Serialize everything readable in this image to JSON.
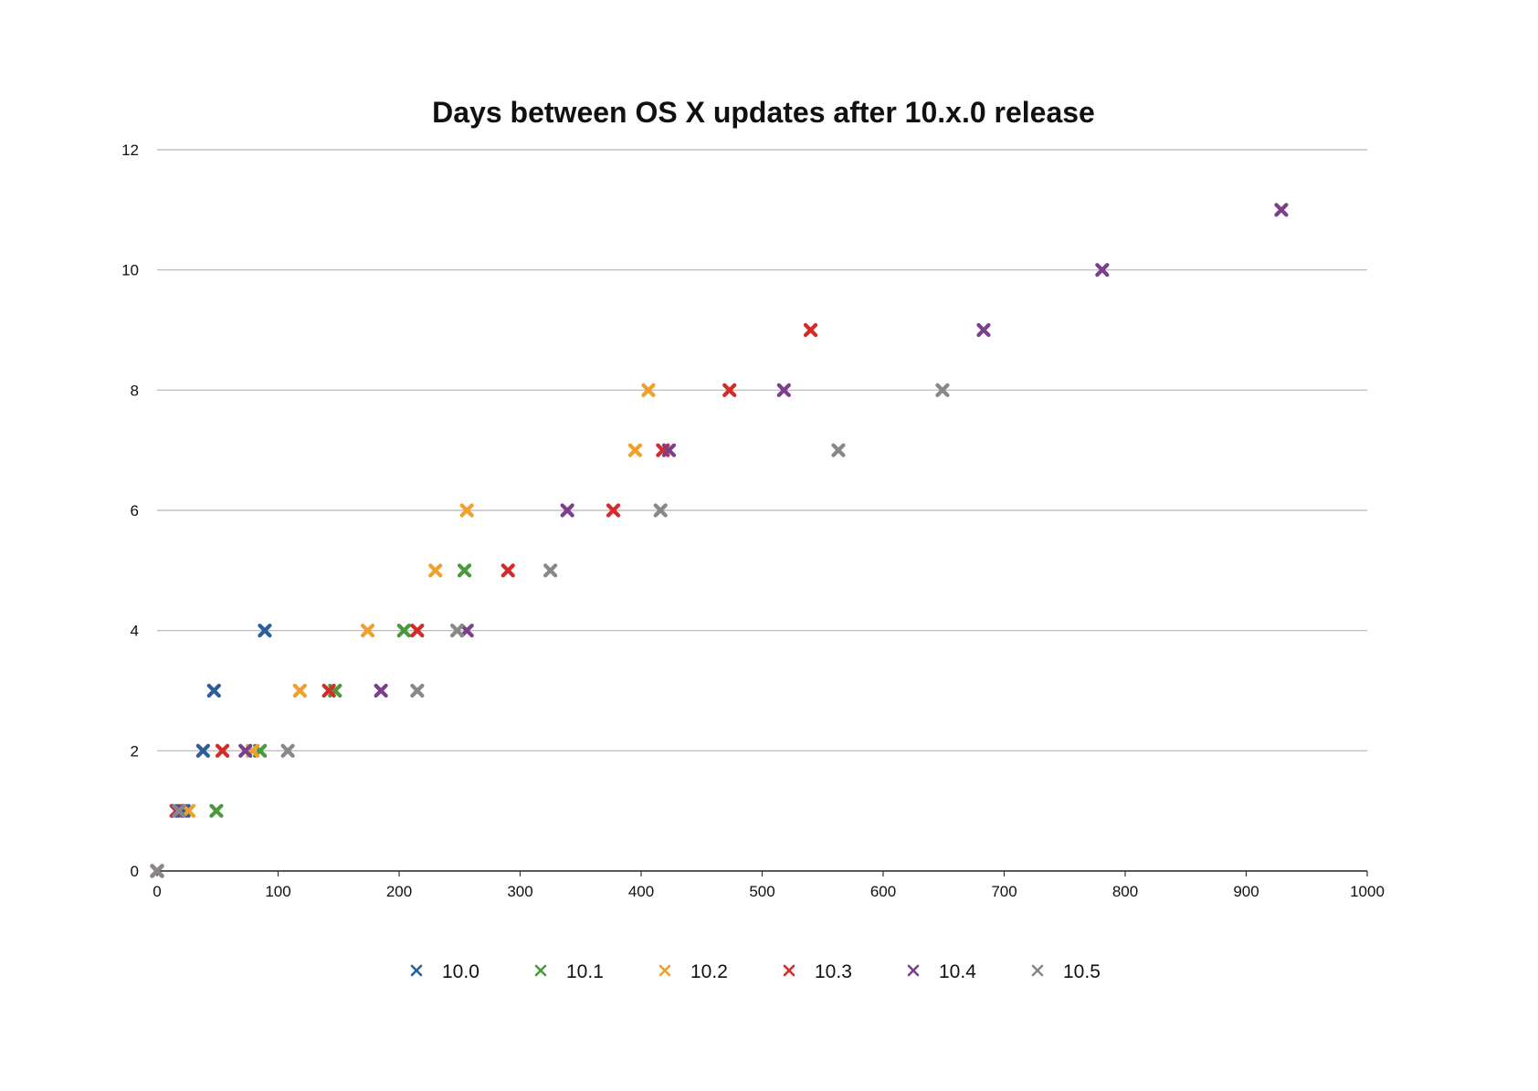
{
  "chart_data": {
    "type": "scatter",
    "title": "Days between OS X updates after 10.x.0 release",
    "xlabel": "",
    "ylabel": "",
    "xlim": [
      0,
      1000
    ],
    "ylim": [
      0,
      12
    ],
    "x_ticks": [
      0,
      100,
      200,
      300,
      400,
      500,
      600,
      700,
      800,
      900,
      1000
    ],
    "y_ticks": [
      0,
      2,
      4,
      6,
      8,
      10,
      12
    ],
    "grid": "horizontal",
    "legend_position": "bottom",
    "marker": "x",
    "series": [
      {
        "name": "10.0",
        "color": "#2b5e9a",
        "points": [
          [
            0,
            0
          ],
          [
            20,
            1
          ],
          [
            22,
            1
          ],
          [
            38,
            2
          ],
          [
            47,
            3
          ],
          [
            89,
            4
          ]
        ]
      },
      {
        "name": "10.1",
        "color": "#4a9a3c",
        "points": [
          [
            0,
            0
          ],
          [
            49,
            1
          ],
          [
            85,
            2
          ],
          [
            147,
            3
          ],
          [
            204,
            4
          ],
          [
            254,
            5
          ]
        ]
      },
      {
        "name": "10.2",
        "color": "#f0a02c",
        "points": [
          [
            0,
            0
          ],
          [
            26,
            1
          ],
          [
            79,
            2
          ],
          [
            118,
            3
          ],
          [
            174,
            4
          ],
          [
            230,
            5
          ],
          [
            256,
            6
          ],
          [
            395,
            7
          ],
          [
            406,
            8
          ]
        ]
      },
      {
        "name": "10.3",
        "color": "#d42b2b",
        "points": [
          [
            0,
            0
          ],
          [
            16,
            1
          ],
          [
            54,
            2
          ],
          [
            142,
            3
          ],
          [
            215,
            4
          ],
          [
            290,
            5
          ],
          [
            377,
            6
          ],
          [
            418,
            7
          ],
          [
            473,
            8
          ],
          [
            540,
            9
          ]
        ]
      },
      {
        "name": "10.4",
        "color": "#7b3f8c",
        "points": [
          [
            0,
            0
          ],
          [
            17,
            1
          ],
          [
            73,
            2
          ],
          [
            185,
            3
          ],
          [
            256,
            4
          ],
          [
            339,
            6
          ],
          [
            423,
            7
          ],
          [
            518,
            8
          ],
          [
            683,
            9
          ],
          [
            781,
            10
          ],
          [
            929,
            11
          ]
        ]
      },
      {
        "name": "10.5",
        "color": "#888888",
        "points": [
          [
            0,
            0
          ],
          [
            18,
            1
          ],
          [
            108,
            2
          ],
          [
            215,
            3
          ],
          [
            248,
            4
          ],
          [
            325,
            5
          ],
          [
            416,
            6
          ],
          [
            563,
            7
          ],
          [
            649,
            8
          ]
        ]
      }
    ]
  }
}
